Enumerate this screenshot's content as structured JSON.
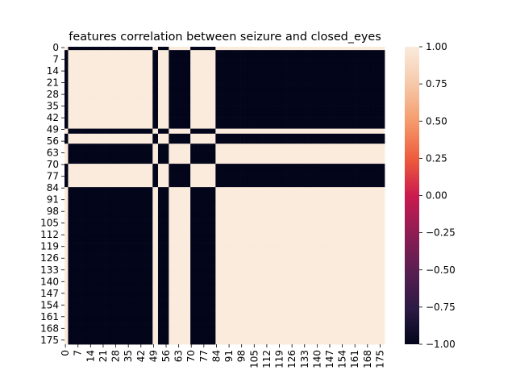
{
  "chart_data": {
    "type": "heatmap",
    "title": "features correlation between seizure  and closed_eyes",
    "xlabel": "",
    "ylabel": "",
    "n": 178,
    "tick_step": 7,
    "x_ticks": [
      "0",
      "7",
      "14",
      "21",
      "28",
      "35",
      "42",
      "49",
      "56",
      "63",
      "70",
      "77",
      "84",
      "91",
      "98",
      "105",
      "112",
      "119",
      "126",
      "133",
      "140",
      "147",
      "154",
      "161",
      "168",
      "175"
    ],
    "y_ticks": [
      "0",
      "7",
      "14",
      "21",
      "28",
      "35",
      "42",
      "49",
      "56",
      "63",
      "70",
      "77",
      "84",
      "91",
      "98",
      "105",
      "112",
      "119",
      "126",
      "133",
      "140",
      "147",
      "154",
      "161",
      "168",
      "175"
    ],
    "negative_indices": [
      0,
      1,
      49,
      50,
      51,
      58,
      59,
      60,
      61,
      62,
      63,
      64,
      65,
      66,
      67,
      68,
      69,
      84,
      85,
      86,
      87,
      88,
      89,
      90,
      91,
      92,
      93,
      94,
      95,
      96,
      97,
      98,
      99,
      100,
      101,
      102,
      103,
      104,
      105,
      106,
      107,
      108,
      109,
      110,
      111,
      112,
      113,
      114,
      115,
      116,
      117,
      118,
      119,
      120,
      121,
      122,
      123,
      124,
      125,
      126,
      127,
      128,
      129,
      130,
      131,
      132,
      133,
      134,
      135,
      136,
      137,
      138,
      139,
      140,
      141,
      142,
      143,
      144,
      145,
      146,
      147,
      148,
      149,
      150,
      151,
      152,
      153,
      154,
      155,
      156,
      157,
      158,
      159,
      160,
      161,
      162,
      163,
      164,
      165,
      166,
      167,
      168,
      169,
      170,
      171,
      172,
      173,
      174,
      175,
      176,
      177
    ],
    "row_pattern_note_removed": "",
    "values_encoding": "cell(i,j) = 1.00 if sign(i) == sign(j) else -1.00",
    "colorbar": {
      "vmin": -1.0,
      "vmax": 1.0,
      "ticks": [
        "1.00",
        "0.75",
        "0.50",
        "0.25",
        "0.00",
        "−0.25",
        "−0.50",
        "−0.75",
        "−1.00"
      ],
      "tick_values": [
        1.0,
        0.75,
        0.5,
        0.25,
        0.0,
        -0.25,
        -0.5,
        -0.75,
        -1.0
      ]
    },
    "colors": {
      "positive": "#faebdd",
      "negative": "#03051a"
    }
  }
}
